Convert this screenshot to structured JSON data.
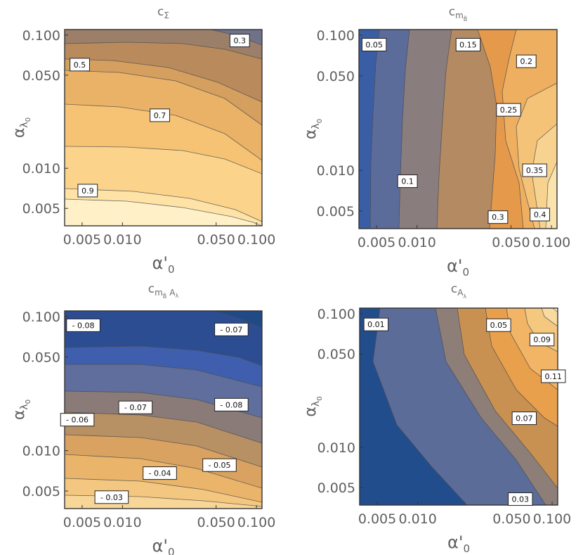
{
  "chart_data": [
    {
      "type": "contour",
      "title": "c_Σ",
      "title_main": "c",
      "title_sub": "Σ",
      "xlabel_main": "α'",
      "xlabel_sub": "0",
      "ylabel_main": "α",
      "ylabel_sub": "λ",
      "ylabel_subsub": "0",
      "x_scale": "log",
      "y_scale": "log",
      "xlim": [
        0.0037,
        0.11
      ],
      "ylim": [
        0.0037,
        0.11
      ],
      "x_ticks": [
        "0.005",
        "0.010",
        "0.050",
        "0.100"
      ],
      "y_ticks": [
        "0.100",
        "0.050",
        "0.010",
        "0.005"
      ],
      "colors": [
        "#fff0c8",
        "#fee2a6",
        "#fbd38a",
        "#f6c375",
        "#eab267",
        "#d49f5f",
        "#b98b5c",
        "#9b7f68",
        "#6f7289"
      ],
      "contour_labels": [
        {
          "text": "0.3",
          "x": 0.075,
          "y": 0.091
        },
        {
          "text": "0.5",
          "x": 0.0048,
          "y": 0.06
        },
        {
          "text": "0.7",
          "x": 0.019,
          "y": 0.025
        },
        {
          "text": "0.9",
          "x": 0.0055,
          "y": 0.0068
        }
      ]
    },
    {
      "type": "contour",
      "title": "c_m_B̃",
      "title_main": "c",
      "title_sub": "m",
      "title_subsub": "B̃",
      "xlabel_main": "α'",
      "xlabel_sub": "0",
      "ylabel_main": "α",
      "ylabel_sub": "λ",
      "ylabel_subsub": "0",
      "x_scale": "log",
      "y_scale": "log",
      "xlim": [
        0.0037,
        0.11
      ],
      "ylim": [
        0.0037,
        0.11
      ],
      "x_ticks": [
        "0.005",
        "0.010",
        "0.050",
        "0.100"
      ],
      "y_ticks": [
        "0.100",
        "0.050",
        "0.010",
        "0.005"
      ],
      "colors": [
        "#3a5ea6",
        "#5b6b9a",
        "#8a7d7e",
        "#b48a62",
        "#e59a4b",
        "#efaf60",
        "#f4c377",
        "#f8d390",
        "#fbe3ad"
      ],
      "contour_labels": [
        {
          "text": "0.05",
          "x": 0.0048,
          "y": 0.085
        },
        {
          "text": "0.15",
          "x": 0.024,
          "y": 0.085
        },
        {
          "text": "0.2",
          "x": 0.065,
          "y": 0.064
        },
        {
          "text": "0.25",
          "x": 0.048,
          "y": 0.028
        },
        {
          "text": "0.1",
          "x": 0.0085,
          "y": 0.0083
        },
        {
          "text": "0.35",
          "x": 0.075,
          "y": 0.01
        },
        {
          "text": "0.3",
          "x": 0.04,
          "y": 0.0045
        },
        {
          "text": "0.4",
          "x": 0.082,
          "y": 0.0047
        }
      ]
    },
    {
      "type": "contour",
      "title": "c_m_B̃ A_λ",
      "title_main": "c",
      "title_sub": "m",
      "title_subsub": "B̃",
      "title_sub2": "A",
      "title_sub2sub": "λ",
      "xlabel_main": "α'",
      "xlabel_sub": "0",
      "ylabel_main": "α",
      "ylabel_sub": "λ",
      "ylabel_subsub": "0",
      "x_scale": "log",
      "y_scale": "log",
      "xlim": [
        0.0037,
        0.11
      ],
      "ylim": [
        0.0037,
        0.11
      ],
      "x_ticks": [
        "0.005",
        "0.010",
        "0.050",
        "0.100"
      ],
      "y_ticks": [
        "0.100",
        "0.050",
        "0.010",
        "0.005"
      ],
      "colors": [
        "#f8d698",
        "#f4c780",
        "#eab46a",
        "#d9a260",
        "#b79063",
        "#8a7b79",
        "#5f6e9c",
        "#3f5fae",
        "#2d4d93",
        "#1f4a86"
      ],
      "contour_labels": [
        {
          "text": "- 0.08",
          "x": 0.0051,
          "y": 0.086
        },
        {
          "text": "- 0.07",
          "x": 0.065,
          "y": 0.08
        },
        {
          "text": "- 0.07",
          "x": 0.0125,
          "y": 0.021
        },
        {
          "text": "- 0.08",
          "x": 0.065,
          "y": 0.022
        },
        {
          "text": "- 0.06",
          "x": 0.0046,
          "y": 0.017
        },
        {
          "text": "- 0.04",
          "x": 0.019,
          "y": 0.0068
        },
        {
          "text": "- 0.05",
          "x": 0.053,
          "y": 0.0078
        },
        {
          "text": "- 0.03",
          "x": 0.0083,
          "y": 0.0045
        }
      ]
    },
    {
      "type": "contour",
      "title": "c_A_λ",
      "title_main": "c",
      "title_sub": "A",
      "title_subsub": "λ",
      "xlabel_main": "α'",
      "xlabel_sub": "0",
      "ylabel_main": "α",
      "ylabel_sub": "λ",
      "ylabel_subsub": "0",
      "x_scale": "log",
      "y_scale": "log",
      "xlim": [
        0.0037,
        0.11
      ],
      "ylim": [
        0.0037,
        0.11
      ],
      "x_ticks": [
        "0.005",
        "0.010",
        "0.050",
        "0.100"
      ],
      "y_ticks": [
        "0.100",
        "0.050",
        "0.010",
        "0.005"
      ],
      "colors": [
        "#224d8c",
        "#5b6c98",
        "#8e7e78",
        "#c89152",
        "#e9a04c",
        "#f1b565",
        "#f5c87f",
        "#f9dba0",
        "#fdeec8"
      ],
      "contour_labels": [
        {
          "text": "0.01",
          "x": 0.0049,
          "y": 0.083
        },
        {
          "text": "0.05",
          "x": 0.04,
          "y": 0.082
        },
        {
          "text": "0.09",
          "x": 0.084,
          "y": 0.064
        },
        {
          "text": "0.11",
          "x": 0.102,
          "y": 0.034
        },
        {
          "text": "0.07",
          "x": 0.062,
          "y": 0.0165
        },
        {
          "text": "0.03",
          "x": 0.058,
          "y": 0.0041
        }
      ]
    }
  ]
}
